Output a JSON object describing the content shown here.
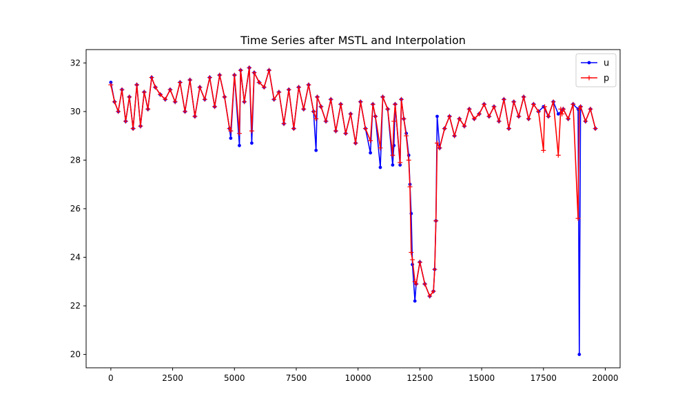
{
  "chart_data": {
    "type": "line",
    "title": "Time Series after MSTL and Interpolation",
    "xlabel": "",
    "ylabel": "",
    "xlim": [
      -1000,
      20600
    ],
    "ylim": [
      19.45,
      32.55
    ],
    "xticks": [
      0,
      2500,
      5000,
      7500,
      10000,
      12500,
      15000,
      17500,
      20000
    ],
    "xtick_labels": [
      "0",
      "2500",
      "5000",
      "7500",
      "10000",
      "12500",
      "15000",
      "17500",
      "20000"
    ],
    "yticks": [
      20,
      22,
      24,
      26,
      28,
      30,
      32
    ],
    "ytick_labels": [
      "20",
      "22",
      "24",
      "26",
      "28",
      "30",
      "32"
    ],
    "grid": false,
    "legend_position": "top-right",
    "series": [
      {
        "name": "u",
        "color": "#0000ff",
        "marker": "dot",
        "x": [
          0,
          150,
          300,
          450,
          600,
          750,
          900,
          1050,
          1200,
          1350,
          1500,
          1650,
          1800,
          2000,
          2200,
          2400,
          2600,
          2800,
          3000,
          3200,
          3400,
          3600,
          3800,
          4000,
          4200,
          4400,
          4600,
          4800,
          4850,
          5000,
          5200,
          5250,
          5400,
          5600,
          5700,
          5800,
          6000,
          6200,
          6400,
          6600,
          6800,
          7000,
          7200,
          7400,
          7600,
          7800,
          8000,
          8200,
          8300,
          8350,
          8500,
          8700,
          8900,
          9100,
          9300,
          9500,
          9700,
          9900,
          10100,
          10300,
          10500,
          10600,
          10700,
          10900,
          11000,
          11200,
          11400,
          11450,
          11500,
          11700,
          11750,
          11850,
          11950,
          12050,
          12100,
          12150,
          12200,
          12300,
          12350,
          12500,
          12700,
          12900,
          13050,
          13100,
          13150,
          13200,
          13300,
          13500,
          13700,
          13900,
          14100,
          14300,
          14500,
          14700,
          14900,
          15100,
          15300,
          15500,
          15700,
          15900,
          16100,
          16300,
          16500,
          16700,
          16900,
          17100,
          17300,
          17500,
          17700,
          17900,
          18100,
          18300,
          18500,
          18700,
          18900,
          18950,
          19000,
          19200,
          19400,
          19600
        ],
        "values": [
          31.2,
          30.4,
          30.0,
          30.9,
          29.6,
          30.6,
          29.3,
          31.1,
          29.4,
          30.8,
          30.1,
          31.4,
          31.0,
          30.7,
          30.5,
          30.9,
          30.4,
          31.2,
          30.0,
          31.3,
          29.8,
          31.0,
          30.5,
          31.4,
          30.2,
          31.5,
          30.6,
          29.3,
          28.9,
          31.5,
          28.6,
          31.7,
          30.4,
          31.8,
          28.7,
          31.6,
          31.2,
          31.0,
          31.7,
          30.5,
          30.8,
          29.5,
          30.9,
          29.3,
          31.0,
          30.1,
          31.1,
          30.0,
          28.4,
          30.6,
          30.2,
          29.6,
          30.5,
          29.2,
          30.3,
          29.1,
          29.9,
          28.7,
          30.4,
          29.3,
          28.3,
          30.3,
          29.8,
          27.7,
          30.6,
          30.1,
          27.8,
          28.6,
          30.3,
          27.8,
          30.5,
          29.7,
          29.1,
          28.2,
          27.0,
          25.8,
          23.7,
          22.2,
          22.9,
          23.8,
          22.9,
          22.4,
          22.6,
          23.5,
          25.5,
          29.8,
          28.5,
          29.3,
          29.8,
          29.0,
          29.7,
          29.4,
          30.1,
          29.7,
          29.9,
          30.3,
          29.8,
          30.2,
          29.6,
          30.5,
          29.3,
          30.4,
          29.8,
          30.6,
          29.7,
          30.3,
          30.0,
          30.2,
          29.8,
          30.4,
          29.9,
          30.1,
          29.7,
          30.3,
          30.1,
          20.0,
          30.2,
          29.6,
          30.1,
          29.3
        ]
      },
      {
        "name": "p",
        "color": "#ff0000",
        "marker": "plus",
        "x": [
          0,
          150,
          300,
          450,
          600,
          750,
          900,
          1050,
          1200,
          1350,
          1500,
          1650,
          1800,
          2000,
          2200,
          2400,
          2600,
          2800,
          3000,
          3200,
          3400,
          3600,
          3800,
          4000,
          4200,
          4400,
          4600,
          4800,
          4850,
          5000,
          5200,
          5250,
          5400,
          5600,
          5700,
          5800,
          6000,
          6200,
          6400,
          6600,
          6800,
          7000,
          7200,
          7400,
          7600,
          7800,
          8000,
          8200,
          8300,
          8350,
          8500,
          8700,
          8900,
          9100,
          9300,
          9500,
          9700,
          9900,
          10100,
          10300,
          10500,
          10600,
          10700,
          10900,
          11000,
          11200,
          11400,
          11450,
          11500,
          11700,
          11750,
          11850,
          11950,
          12050,
          12100,
          12150,
          12200,
          12300,
          12350,
          12500,
          12700,
          12900,
          13050,
          13100,
          13150,
          13200,
          13300,
          13500,
          13700,
          13900,
          14100,
          14300,
          14500,
          14700,
          14900,
          15100,
          15300,
          15500,
          15700,
          15900,
          16100,
          16300,
          16500,
          16700,
          16900,
          17100,
          17300,
          17500,
          17550,
          17700,
          17900,
          18100,
          18200,
          18250,
          18300,
          18500,
          18700,
          18900,
          18950,
          19000,
          19200,
          19400,
          19600
        ],
        "values": [
          31.1,
          30.4,
          30.0,
          30.9,
          29.6,
          30.6,
          29.3,
          31.1,
          29.4,
          30.8,
          30.1,
          31.4,
          31.0,
          30.7,
          30.5,
          30.9,
          30.4,
          31.2,
          30.0,
          31.3,
          29.8,
          31.0,
          30.5,
          31.4,
          30.2,
          31.5,
          30.6,
          29.3,
          29.2,
          31.5,
          29.1,
          31.7,
          30.4,
          31.8,
          29.2,
          31.6,
          31.2,
          31.0,
          31.7,
          30.5,
          30.8,
          29.5,
          30.9,
          29.3,
          31.0,
          30.1,
          31.1,
          30.0,
          29.7,
          30.6,
          30.2,
          29.6,
          30.5,
          29.2,
          30.3,
          29.1,
          29.9,
          28.7,
          30.4,
          29.3,
          28.8,
          30.3,
          29.8,
          28.5,
          30.6,
          30.1,
          28.2,
          29.6,
          30.3,
          27.9,
          30.5,
          29.7,
          29.0,
          28.0,
          26.9,
          24.2,
          23.9,
          23.0,
          22.9,
          23.8,
          22.9,
          22.4,
          22.6,
          23.5,
          25.5,
          28.7,
          28.5,
          29.3,
          29.8,
          29.0,
          29.7,
          29.4,
          30.1,
          29.7,
          29.9,
          30.3,
          29.8,
          30.2,
          29.6,
          30.5,
          29.3,
          30.4,
          29.8,
          30.6,
          29.7,
          30.3,
          30.0,
          28.4,
          30.2,
          29.8,
          30.4,
          28.2,
          30.1,
          29.9,
          30.1,
          29.7,
          30.3,
          25.6,
          30.1,
          30.2,
          29.6,
          30.1,
          29.3
        ]
      }
    ]
  }
}
